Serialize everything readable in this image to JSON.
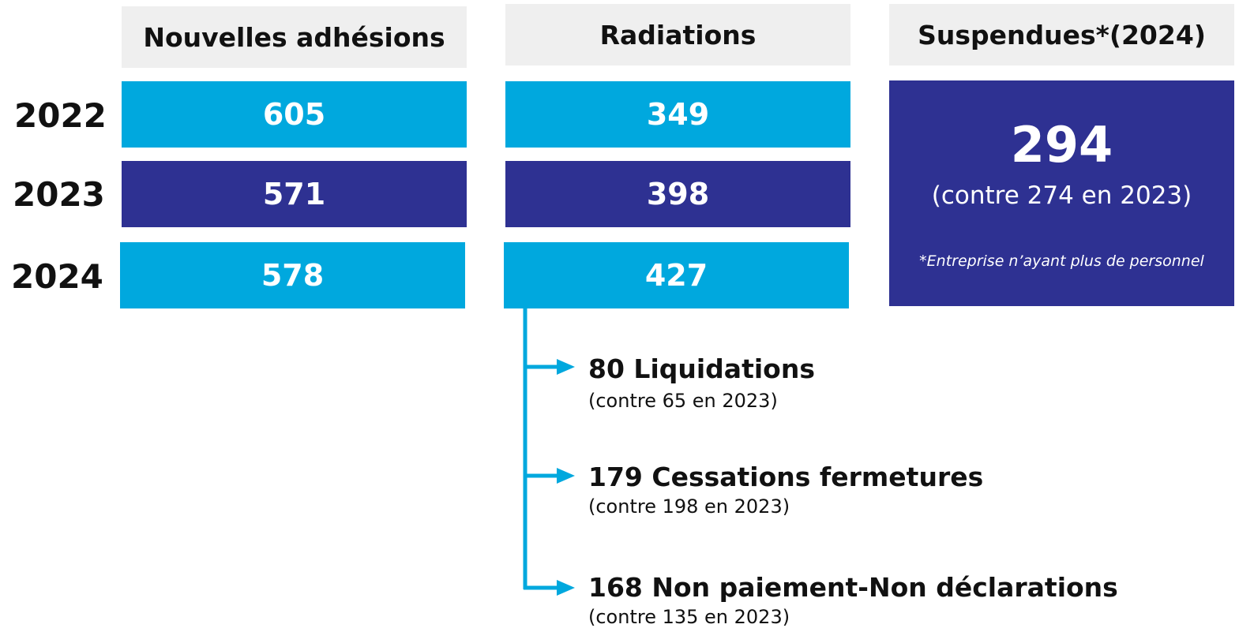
{
  "headers": [
    "Nouvelles adhésions",
    "Radiations",
    "Suspendues*(2024)"
  ],
  "rows": [
    {
      "year": "2022",
      "adhesions": 605,
      "radiations": 349
    },
    {
      "year": "2023",
      "adhesions": 571,
      "radiations": 398
    },
    {
      "year": "2024",
      "adhesions": 578,
      "radiations": 427
    }
  ],
  "suspended": {
    "value": 294,
    "comparison": "(contre 274 en 2023)",
    "note": "*Entreprise n’ayant plus de personnel"
  },
  "breakdown": [
    {
      "label": "80 Liquidations",
      "comparison": "(contre 65 en 2023)"
    },
    {
      "label": "179 Cessations fermetures",
      "comparison": "(contre 198 en 2023)"
    },
    {
      "label": "168 Non paiement-Non déclarations",
      "comparison": "(contre 135 en 2023)"
    }
  ]
}
